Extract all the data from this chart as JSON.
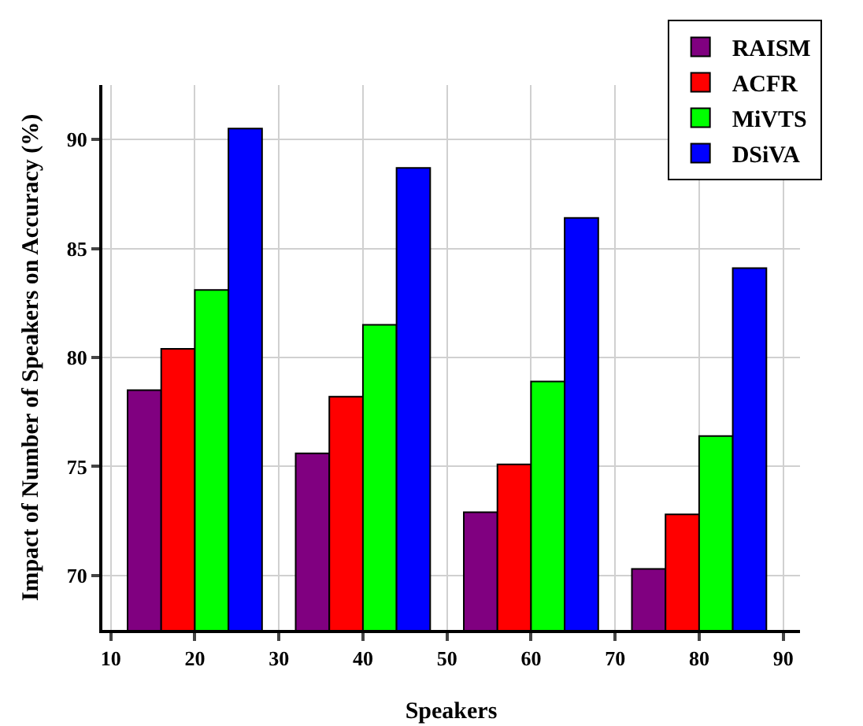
{
  "chart_data": {
    "type": "bar",
    "xlabel": "Speakers",
    "ylabel": "Impact of Number of Speakers on Accuracy (%)",
    "x": [
      20,
      40,
      60,
      80
    ],
    "series": [
      {
        "name": "RAISM",
        "color": "#800080",
        "values": [
          78.5,
          75.6,
          72.9,
          70.3
        ]
      },
      {
        "name": "ACFR",
        "color": "#ff0000",
        "values": [
          80.4,
          78.2,
          75.1,
          72.8
        ]
      },
      {
        "name": "MiVTS",
        "color": "#00ff00",
        "values": [
          83.1,
          81.5,
          78.9,
          76.4
        ]
      },
      {
        "name": "DSiVA",
        "color": "#0000ff",
        "values": [
          90.5,
          88.7,
          86.4,
          84.1
        ]
      }
    ],
    "xlim": [
      9,
      92
    ],
    "xticks": [
      10,
      20,
      30,
      40,
      50,
      60,
      70,
      80,
      90
    ],
    "ylim": [
      67.5,
      92.5
    ],
    "yticks": [
      70,
      75,
      80,
      85,
      90
    ],
    "grid": true,
    "legend": "top right"
  }
}
